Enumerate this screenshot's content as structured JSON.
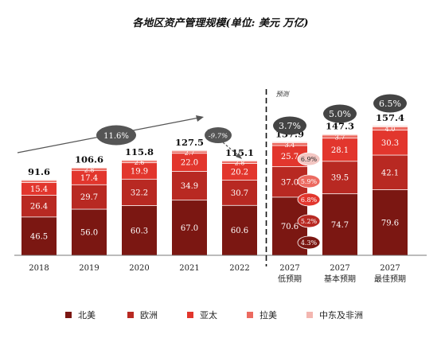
{
  "chart_data": {
    "type": "bar",
    "stacked": true,
    "title": "各地区资产管理规模(单位: 美元 万亿)",
    "categories": [
      "2018",
      "2019",
      "2020",
      "2021",
      "2022",
      "2027\n低预期",
      "2027\n基本预期",
      "2027\n最佳预期"
    ],
    "totals": [
      "91.6",
      "106.6",
      "115.8",
      "127.5",
      "115.1",
      "137.9",
      "147.3",
      "157.4"
    ],
    "series": [
      {
        "name": "北美",
        "color": "#7b1712",
        "values": [
          46.5,
          56.0,
          60.3,
          67.0,
          60.6,
          70.6,
          74.7,
          79.6
        ],
        "labels": [
          "46.5",
          "56.0",
          "60.3",
          "67.0",
          "60.6",
          "70.6",
          "74.7",
          "79.6"
        ]
      },
      {
        "name": "欧洲",
        "color": "#b82922",
        "values": [
          26.4,
          29.7,
          32.2,
          34.9,
          30.7,
          37.0,
          39.5,
          42.1
        ],
        "labels": [
          "26.4",
          "29.7",
          "32.2",
          "34.9",
          "30.7",
          "37.0",
          "39.5",
          "42.1"
        ]
      },
      {
        "name": "亚太",
        "color": "#e2362d",
        "values": [
          15.4,
          17.4,
          19.9,
          22.0,
          20.2,
          25.7,
          28.1,
          30.3
        ],
        "labels": [
          "15.4",
          "17.4",
          "19.9",
          "22.0",
          "20.2",
          "25.7",
          "28.1",
          "30.3"
        ]
      },
      {
        "name": "拉美",
        "color": "#ec6a60",
        "values": [
          2.6,
          2.8,
          2.6,
          2.7,
          2.8,
          3.4,
          3.7,
          4.0
        ],
        "labels": [
          "",
          "2.8",
          "2.6",
          "2.7",
          "2.8",
          "3.4",
          "3.7",
          "4.0"
        ]
      },
      {
        "name": "中东及非洲",
        "color": "#f3b6b0",
        "values": [
          0.7,
          0.7,
          0.8,
          0.9,
          0.8,
          1.2,
          1.3,
          1.4
        ],
        "labels": [
          "",
          "",
          "",
          "",
          "",
          "",
          "",
          ""
        ]
      }
    ],
    "forecast_label": "预测",
    "growth_annotations": {
      "historical_cagr": "11.6%",
      "decline_2022": "-9.7%",
      "scenario_cagr": [
        "3.7%",
        "5.0%",
        "6.5%"
      ],
      "region_cagr": [
        "6.9%",
        "5.9%",
        "6.8%",
        "5.2%",
        "4.3%"
      ]
    },
    "legend_position": "bottom",
    "grid": false
  }
}
